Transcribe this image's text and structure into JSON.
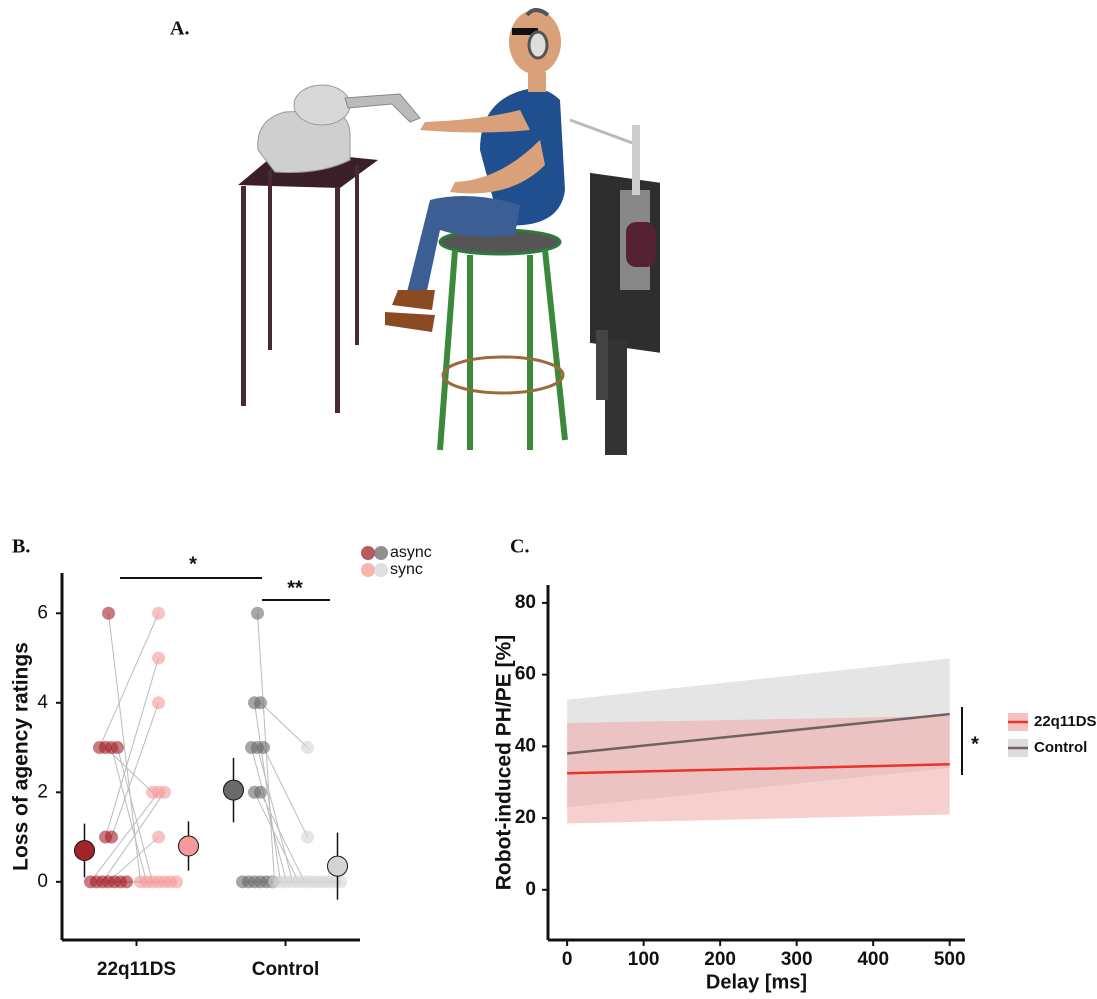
{
  "figure": {
    "panel_labels": [
      "A.",
      "B.",
      "C."
    ]
  },
  "chart_data": [
    {
      "type": "strip",
      "ylabel": "Loss of agency ratings",
      "categories": [
        "22q11DS",
        "Control"
      ],
      "ylim": [
        -1.3,
        6.9
      ],
      "yticks": [
        0,
        2,
        4,
        6
      ],
      "series": [
        {
          "name": "async",
          "colors": [
            "#a3232a",
            "#6a6a6a"
          ],
          "values": [
            [
              6,
              3,
              3,
              3,
              3,
              1,
              1,
              0,
              0,
              0,
              0,
              0,
              0,
              0
            ],
            [
              6,
              4,
              4,
              3,
              3,
              3,
              2,
              2,
              0,
              0,
              0,
              0,
              0,
              0
            ]
          ],
          "means": [
            0.7,
            2.05
          ],
          "errors": [
            0.6,
            0.72
          ]
        },
        {
          "name": "sync",
          "colors": [
            "#f59a9a",
            "#d4d4d4"
          ],
          "values": [
            [
              0,
              6,
              2,
              0,
              0,
              5,
              4,
              2,
              0,
              2,
              1,
              0,
              0,
              0
            ],
            [
              0,
              0,
              3,
              0,
              0,
              1,
              0,
              0,
              0,
              0,
              0,
              0,
              0,
              0
            ]
          ],
          "means": [
            0.8,
            0.35
          ],
          "errors": [
            0.55,
            0.75
          ]
        }
      ],
      "annotations": [
        "*",
        "**"
      ]
    },
    {
      "type": "line",
      "xlabel": "Delay [ms]",
      "ylabel": "Robot-induced PH/PE [%]",
      "xlim": [
        -25,
        520
      ],
      "xticks": [
        0,
        100,
        200,
        300,
        400,
        500
      ],
      "ylim": [
        -14,
        85
      ],
      "yticks": [
        0,
        20,
        40,
        60,
        80
      ],
      "series": [
        {
          "name": "22q11DS",
          "color": "#e8342a",
          "band_color": "#f2a7a7",
          "x": [
            0,
            500
          ],
          "values": [
            32.5,
            35
          ],
          "lower": [
            18.5,
            21
          ],
          "upper": [
            46.5,
            48.5
          ]
        },
        {
          "name": "Control",
          "color": "#706262",
          "band_color": "#cfcfcf",
          "x": [
            0,
            500
          ],
          "values": [
            38,
            49
          ],
          "lower": [
            23,
            34
          ],
          "upper": [
            53,
            64.5
          ]
        }
      ],
      "annotations": [
        "*"
      ]
    }
  ]
}
